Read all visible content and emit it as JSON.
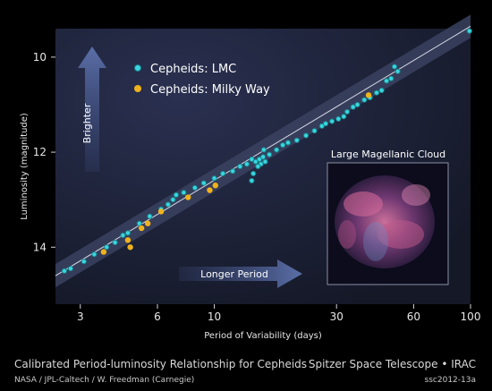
{
  "chart_data": {
    "type": "scatter",
    "title": "Calibrated Period-luminosity Relationship for Cepheids",
    "xlabel": "Period of Variability (days)",
    "ylabel": "Luminosity (magnitude)",
    "x_scale": "log",
    "xlim": [
      2.4,
      100
    ],
    "ylim": [
      15.2,
      9.4
    ],
    "x_ticks": [
      3,
      6,
      10,
      30,
      60,
      100
    ],
    "y_ticks": [
      10,
      12,
      14
    ],
    "legend_position": "top-left",
    "fit_line": {
      "x": [
        2.4,
        100
      ],
      "y": [
        14.6,
        9.35
      ]
    },
    "series": [
      {
        "name": "Cepheids: LMC",
        "color": "#39d6e0",
        "points": [
          [
            2.6,
            14.5
          ],
          [
            2.75,
            14.45
          ],
          [
            3.1,
            14.3
          ],
          [
            3.4,
            14.15
          ],
          [
            3.8,
            14.0
          ],
          [
            4.1,
            13.9
          ],
          [
            4.4,
            13.75
          ],
          [
            4.6,
            13.7
          ],
          [
            5.1,
            13.5
          ],
          [
            5.6,
            13.35
          ],
          [
            6.2,
            13.2
          ],
          [
            6.6,
            13.1
          ],
          [
            6.9,
            13.0
          ],
          [
            7.1,
            12.9
          ],
          [
            7.6,
            12.85
          ],
          [
            8.4,
            12.75
          ],
          [
            9.1,
            12.65
          ],
          [
            10.0,
            12.55
          ],
          [
            10.8,
            12.45
          ],
          [
            11.8,
            12.4
          ],
          [
            12.6,
            12.3
          ],
          [
            13.4,
            12.25
          ],
          [
            14.0,
            12.15
          ],
          [
            14.5,
            12.2
          ],
          [
            15.0,
            12.15
          ],
          [
            15.2,
            12.25
          ],
          [
            15.5,
            12.1
          ],
          [
            14.8,
            12.3
          ],
          [
            15.8,
            12.2
          ],
          [
            16.4,
            12.05
          ],
          [
            14.2,
            12.45
          ],
          [
            14.0,
            12.6
          ],
          [
            15.6,
            11.95
          ],
          [
            17.5,
            11.95
          ],
          [
            18.5,
            11.85
          ],
          [
            19.4,
            11.8
          ],
          [
            21.0,
            11.75
          ],
          [
            22.8,
            11.65
          ],
          [
            24.6,
            11.55
          ],
          [
            26.3,
            11.45
          ],
          [
            27.2,
            11.4
          ],
          [
            28.8,
            11.35
          ],
          [
            30.5,
            11.3
          ],
          [
            32.0,
            11.25
          ],
          [
            33.0,
            11.15
          ],
          [
            34.8,
            11.05
          ],
          [
            36.2,
            11.0
          ],
          [
            38.5,
            10.9
          ],
          [
            40.5,
            10.85
          ],
          [
            43.0,
            10.75
          ],
          [
            45.0,
            10.7
          ],
          [
            47.0,
            10.5
          ],
          [
            49.0,
            10.45
          ],
          [
            50.5,
            10.2
          ],
          [
            52.0,
            10.3
          ],
          [
            99.0,
            9.45
          ]
        ]
      },
      {
        "name": "Cepheids: Milky Way",
        "color": "#f0b21c",
        "points": [
          [
            3.7,
            14.1
          ],
          [
            4.6,
            13.85
          ],
          [
            4.7,
            14.0
          ],
          [
            5.2,
            13.6
          ],
          [
            5.5,
            13.5
          ],
          [
            6.2,
            13.25
          ],
          [
            7.9,
            12.95
          ],
          [
            9.6,
            12.8
          ],
          [
            10.1,
            12.7
          ],
          [
            40.0,
            10.8
          ]
        ]
      }
    ]
  },
  "legend": {
    "lmc_label": "Cepheids: LMC",
    "mw_label": "Cepheids: Milky Way"
  },
  "annotations": {
    "brighter": "Brighter",
    "longer_period": "Longer Period",
    "inset_title": "Large Magellanic Cloud"
  },
  "footer": {
    "title": "Calibrated Period-luminosity Relationship for Cepheids",
    "source": "NASA / JPL-Caltech / W. Freedman (Carnegie)",
    "mission": "Spitzer Space Telescope • IRAC",
    "image_id": "ssc2012-13a"
  },
  "colors": {
    "plot_bg": "#1c2033",
    "band": "#3d4560",
    "arrow": "#5b6fa8",
    "lmc": "#39d6e0",
    "milky_way": "#f0b21c"
  }
}
